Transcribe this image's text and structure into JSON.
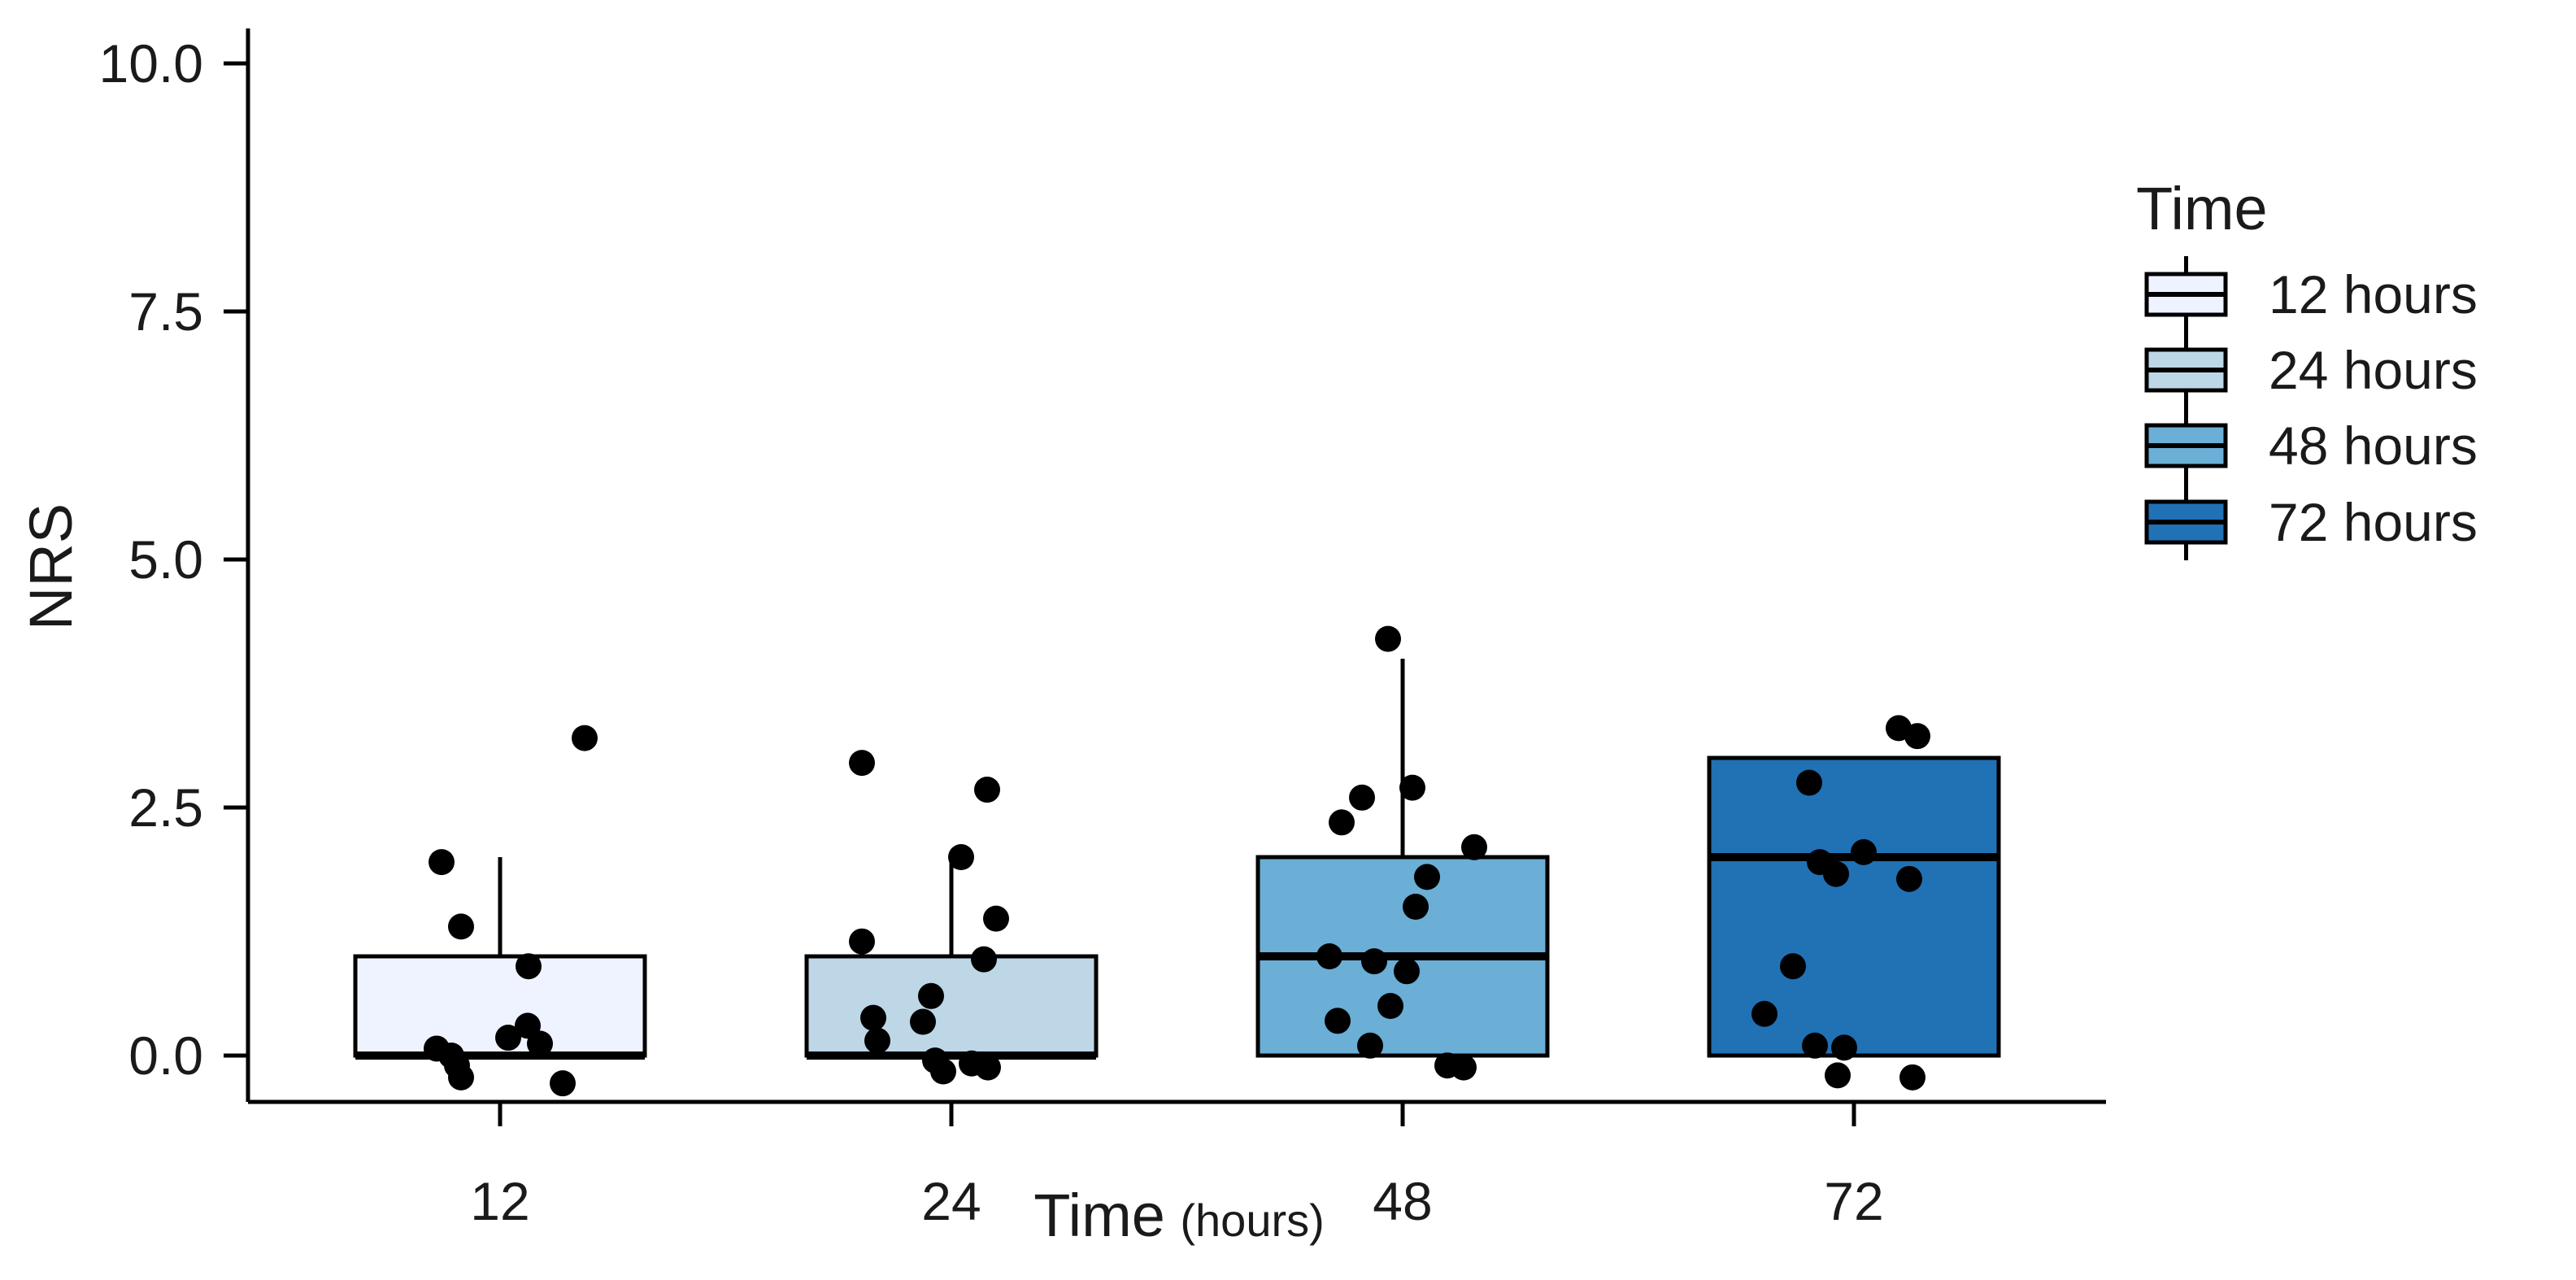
{
  "figure": {
    "background": "#ffffff"
  },
  "chart_data": {
    "type": "box",
    "title": "",
    "xlabel_main": "Time",
    "xlabel_unit": "(hours)",
    "ylabel": "NRS",
    "ylim": [
      -0.6,
      10.6
    ],
    "grid": false,
    "stroke_color": "#000000",
    "point_color": "#000000",
    "yticks": [
      {
        "label": "0.0",
        "value": 0.0
      },
      {
        "label": "2.5",
        "value": 2.5
      },
      {
        "label": "5.0",
        "value": 5.0
      },
      {
        "label": "7.5",
        "value": 7.5
      },
      {
        "label": "10.0",
        "value": 10.0
      }
    ],
    "categories": [
      "12",
      "24",
      "48",
      "72"
    ],
    "legend": {
      "title": "Time",
      "position": "right",
      "entries": [
        {
          "label": "12 hours",
          "color": "#EFF3FF"
        },
        {
          "label": "24 hours",
          "color": "#BDD7E7"
        },
        {
          "label": "48 hours",
          "color": "#6BAED6"
        },
        {
          "label": "72 hours",
          "color": "#2171B5"
        }
      ]
    },
    "series": [
      {
        "name": "12 hours",
        "category": "12",
        "color": "#EFF3FF",
        "box": {
          "q1": 0,
          "median": 0,
          "q3": 1,
          "whisker_low": 0,
          "whisker_high": 2
        },
        "points": [
          {
            "dx": 104,
            "y": 3.2
          },
          {
            "dx": -72,
            "y": 1.95
          },
          {
            "dx": -48,
            "y": 1.3
          },
          {
            "dx": 35,
            "y": 0.9
          },
          {
            "dx": 34,
            "y": 0.3
          },
          {
            "dx": 10,
            "y": 0.18
          },
          {
            "dx": 49,
            "y": 0.12
          },
          {
            "dx": -78,
            "y": 0.07
          },
          {
            "dx": -60,
            "y": 0.0
          },
          {
            "dx": -53,
            "y": -0.1
          },
          {
            "dx": -48,
            "y": -0.22
          },
          {
            "dx": 77,
            "y": -0.28
          }
        ]
      },
      {
        "name": "24 hours",
        "category": "24",
        "color": "#BDD7E7",
        "box": {
          "q1": 0,
          "median": 0,
          "q3": 1,
          "whisker_low": 0,
          "whisker_high": 2
        },
        "points": [
          {
            "dx": -110,
            "y": 2.95
          },
          {
            "dx": 44,
            "y": 2.68
          },
          {
            "dx": 12,
            "y": 2.0
          },
          {
            "dx": 55,
            "y": 1.38
          },
          {
            "dx": -110,
            "y": 1.15
          },
          {
            "dx": 40,
            "y": 0.97
          },
          {
            "dx": -25,
            "y": 0.6
          },
          {
            "dx": -96,
            "y": 0.38
          },
          {
            "dx": -35,
            "y": 0.34
          },
          {
            "dx": -91,
            "y": 0.15
          },
          {
            "dx": -20,
            "y": -0.05
          },
          {
            "dx": 25,
            "y": -0.08
          },
          {
            "dx": -10,
            "y": -0.16
          },
          {
            "dx": 45,
            "y": -0.12
          }
        ]
      },
      {
        "name": "48 hours",
        "category": "48",
        "color": "#6BAED6",
        "box": {
          "q1": 0,
          "median": 1,
          "q3": 2,
          "whisker_low": 0,
          "whisker_high": 4
        },
        "points": [
          {
            "dx": -18,
            "y": 4.2
          },
          {
            "dx": 12,
            "y": 2.7
          },
          {
            "dx": -50,
            "y": 2.6
          },
          {
            "dx": -75,
            "y": 2.35
          },
          {
            "dx": 88,
            "y": 2.1
          },
          {
            "dx": 30,
            "y": 1.8
          },
          {
            "dx": 16,
            "y": 1.5
          },
          {
            "dx": -90,
            "y": 1.0
          },
          {
            "dx": -35,
            "y": 0.95
          },
          {
            "dx": 5,
            "y": 0.85
          },
          {
            "dx": -15,
            "y": 0.5
          },
          {
            "dx": -80,
            "y": 0.35
          },
          {
            "dx": -40,
            "y": 0.1
          },
          {
            "dx": 55,
            "y": -0.1
          },
          {
            "dx": 75,
            "y": -0.12
          }
        ]
      },
      {
        "name": "72 hours",
        "category": "72",
        "color": "#2171B5",
        "box": {
          "q1": 0,
          "median": 2,
          "q3": 3,
          "whisker_low": 0,
          "whisker_high": 3
        },
        "points": [
          {
            "dx": 55,
            "y": 3.3
          },
          {
            "dx": 78,
            "y": 3.22
          },
          {
            "dx": -55,
            "y": 2.75
          },
          {
            "dx": 12,
            "y": 2.05
          },
          {
            "dx": -42,
            "y": 1.95
          },
          {
            "dx": -22,
            "y": 1.83
          },
          {
            "dx": 68,
            "y": 1.78
          },
          {
            "dx": -75,
            "y": 0.9
          },
          {
            "dx": -110,
            "y": 0.42
          },
          {
            "dx": -48,
            "y": 0.1
          },
          {
            "dx": -12,
            "y": 0.08
          },
          {
            "dx": -20,
            "y": -0.2
          },
          {
            "dx": 72,
            "y": -0.22
          }
        ]
      }
    ]
  }
}
